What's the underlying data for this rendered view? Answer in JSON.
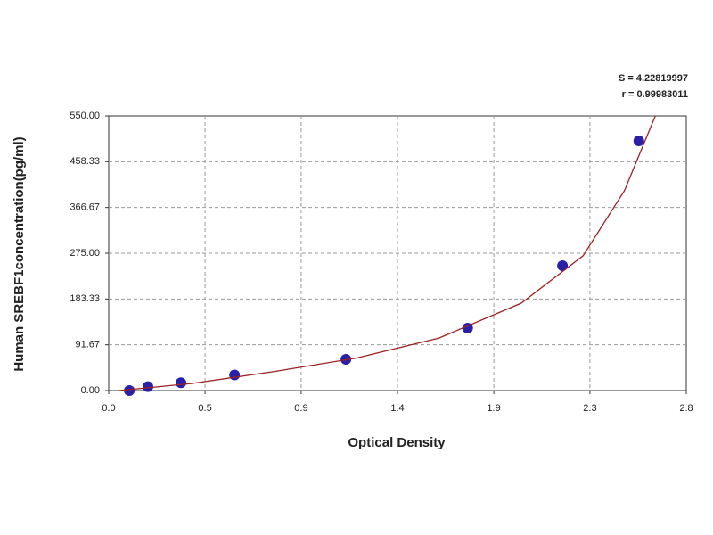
{
  "chart_data": {
    "type": "scatter",
    "xlabel": "Optical Density",
    "ylabel": "Human SREBF1concentration(pg/ml)",
    "annotations": [
      "S = 4.22819997",
      "r = 0.99983011"
    ],
    "xlim": [
      0,
      2.8
    ],
    "ylim": [
      0,
      550
    ],
    "xticks": [
      {
        "value": 0,
        "label": "0.0"
      },
      {
        "value": 0.467,
        "label": "0.5"
      },
      {
        "value": 0.933,
        "label": "0.9"
      },
      {
        "value": 1.4,
        "label": "1.4"
      },
      {
        "value": 1.867,
        "label": "1.9"
      },
      {
        "value": 2.333,
        "label": "2.3"
      },
      {
        "value": 2.8,
        "label": "2.8"
      }
    ],
    "yticks": [
      {
        "value": 0,
        "label": "0.00"
      },
      {
        "value": 91.67,
        "label": "91.67"
      },
      {
        "value": 183.33,
        "label": "183.33"
      },
      {
        "value": 275,
        "label": "275.00"
      },
      {
        "value": 366.67,
        "label": "366.67"
      },
      {
        "value": 458.33,
        "label": "458.33"
      },
      {
        "value": 550,
        "label": "550.00"
      }
    ],
    "grid": true,
    "series": [
      {
        "kind": "points",
        "color": "#2a1fa8",
        "x": [
          0.1,
          0.19,
          0.35,
          0.61,
          1.15,
          1.74,
          2.2,
          2.57
        ],
        "values": [
          0,
          7.8,
          15.6,
          31.25,
          62.5,
          125,
          250,
          500
        ]
      },
      {
        "kind": "line",
        "color": "#9b2222",
        "x": [
          0.05,
          0.4,
          0.8,
          1.2,
          1.6,
          2.0,
          2.3,
          2.5,
          2.65
        ],
        "values": [
          0,
          14,
          38,
          65,
          105,
          175,
          270,
          400,
          550
        ]
      }
    ]
  }
}
